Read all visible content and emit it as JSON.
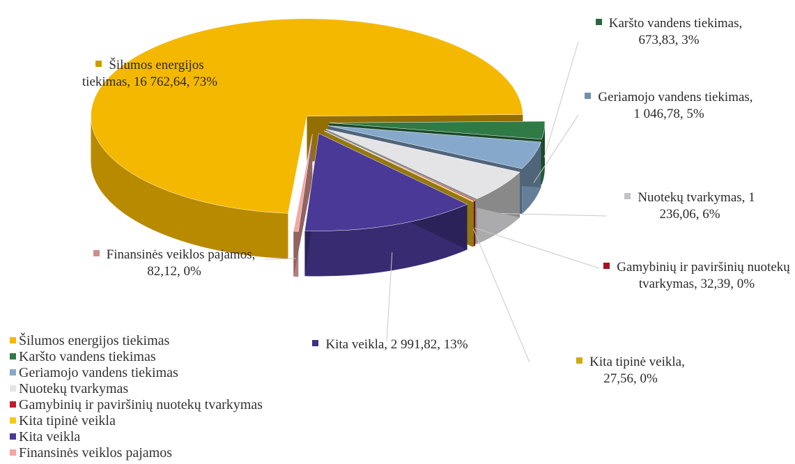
{
  "chart_data": {
    "type": "pie",
    "categories": [
      "Šilumos energijos tiekimas",
      "Karšto vandens tiekimas",
      "Geriamojo vandens tiekimas",
      "Nuotekų tvarkymas",
      "Gamybinių ir paviršinių nuotekų tvarkymas",
      "Kita tipinė veikla",
      "Kita veikla",
      "Finansinės veiklos pajamos"
    ],
    "values": [
      16762.64,
      673.83,
      1046.78,
      1236.06,
      32.39,
      27.56,
      2991.82,
      82.12
    ],
    "value_labels": [
      "Šilumos energijos tiekimas, 16 762,64, 73%",
      "Karšto vandens tiekimas, 673,83, 3%",
      "Geriamojo vandens tiekimas, 1 046,78, 5%",
      "Nuotekų tvarkymas, 1 236,06, 6%",
      "Gamybinių ir paviršinių nuotekų tvarkymas, 32,39, 0%",
      "Kita tipinė veikla, 27,56, 0%",
      "Kita veikla, 2 991,82, 13%",
      "Finansinės veiklos pajamos, 82,12, 0%"
    ],
    "colors": [
      "#f5b800",
      "#2f7a45",
      "#86a9cb",
      "#e4e4e6",
      "#c4182c",
      "#f7c81a",
      "#4a3996",
      "#f2a7a2"
    ],
    "legend": "bottom-left"
  }
}
